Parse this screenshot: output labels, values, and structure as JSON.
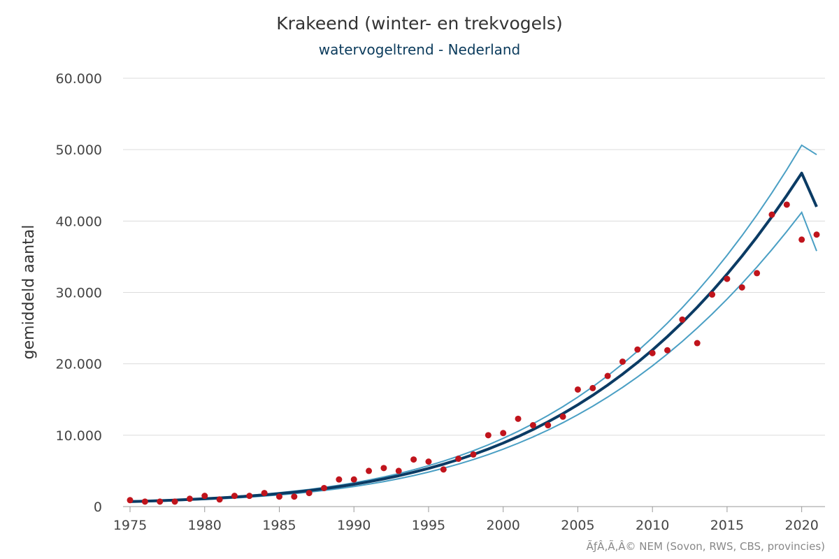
{
  "chart_data": {
    "type": "line",
    "title": "Krakeend (winter- en trekvogels)",
    "subtitle": "watervogeltrend - Nederland",
    "ylabel": "gemiddeld aantal",
    "xlabel": "",
    "credit": "ÃƒÂ‚Ã‚Â© NEM (Sovon, RWS, CBS, provincies)",
    "xlim": [
      1975,
      2021
    ],
    "ylim": [
      0,
      60000
    ],
    "x_ticks": [
      1975,
      1980,
      1985,
      1990,
      1995,
      2000,
      2005,
      2010,
      2015,
      2020
    ],
    "x_tick_labels": [
      "1975",
      "1980",
      "1985",
      "1990",
      "1995",
      "2000",
      "2005",
      "2010",
      "2015",
      "2020"
    ],
    "y_ticks": [
      0,
      10000,
      20000,
      30000,
      40000,
      50000,
      60000
    ],
    "y_tick_labels": [
      "0",
      "10.000",
      "20.000",
      "30.000",
      "40.000",
      "50.000",
      "60.000"
    ],
    "grid": true,
    "colors": {
      "trend": "#0b3b64",
      "band": "#4a9fc4",
      "points": "#c0141c"
    },
    "x": [
      1975,
      1976,
      1977,
      1978,
      1979,
      1980,
      1981,
      1982,
      1983,
      1984,
      1985,
      1986,
      1987,
      1988,
      1989,
      1990,
      1991,
      1992,
      1993,
      1994,
      1995,
      1996,
      1997,
      1998,
      1999,
      2000,
      2001,
      2002,
      2003,
      2004,
      2005,
      2006,
      2007,
      2008,
      2009,
      2010,
      2011,
      2012,
      2013,
      2014,
      2015,
      2016,
      2017,
      2018,
      2019,
      2020,
      2021
    ],
    "series": [
      {
        "name": "trend",
        "kind": "line",
        "values": [
          700,
          760,
          830,
          910,
          1000,
          1100,
          1210,
          1340,
          1480,
          1640,
          1820,
          2020,
          2250,
          2510,
          2800,
          3120,
          3480,
          3880,
          4320,
          4810,
          5350,
          5940,
          6580,
          7290,
          8060,
          8900,
          9810,
          10800,
          11870,
          13020,
          14260,
          15590,
          17020,
          18550,
          20190,
          21940,
          23810,
          25800,
          27920,
          30170,
          32560,
          35090,
          37770,
          40600,
          43580,
          46710,
          42000
        ]
      },
      {
        "name": "upper",
        "kind": "band",
        "values": [
          800,
          840,
          900,
          980,
          1070,
          1170,
          1290,
          1430,
          1580,
          1750,
          1940,
          2160,
          2400,
          2680,
          2990,
          3330,
          3720,
          4150,
          4620,
          5150,
          5730,
          6370,
          7060,
          7820,
          8650,
          9560,
          10540,
          11610,
          12760,
          14000,
          15340,
          16780,
          18330,
          19990,
          21770,
          23670,
          25700,
          27860,
          30160,
          32600,
          35200,
          37950,
          40860,
          43940,
          47190,
          50620,
          49300
        ]
      },
      {
        "name": "lower",
        "kind": "band",
        "values": [
          620,
          680,
          740,
          820,
          900,
          990,
          1090,
          1200,
          1330,
          1480,
          1640,
          1820,
          2030,
          2260,
          2520,
          2810,
          3140,
          3500,
          3900,
          4340,
          4830,
          5370,
          5950,
          6590,
          7290,
          8050,
          8870,
          9760,
          10720,
          11750,
          12870,
          14060,
          15340,
          16700,
          18160,
          19720,
          21380,
          23140,
          25010,
          26980,
          29060,
          31250,
          33560,
          35990,
          38540,
          41210,
          35800
        ]
      },
      {
        "name": "index",
        "kind": "points",
        "values": [
          900,
          700,
          700,
          700,
          1100,
          1500,
          1000,
          1500,
          1500,
          1900,
          1400,
          1400,
          1900,
          2600,
          3800,
          3800,
          5000,
          5400,
          5000,
          6600,
          6300,
          5200,
          6700,
          7300,
          10000,
          10300,
          12300,
          11400,
          11400,
          12600,
          16400,
          16600,
          18300,
          20300,
          22000,
          21500,
          21900,
          26200,
          22900,
          29700,
          31900,
          30700,
          32700,
          40900,
          42300,
          37400,
          38100
        ]
      }
    ]
  }
}
